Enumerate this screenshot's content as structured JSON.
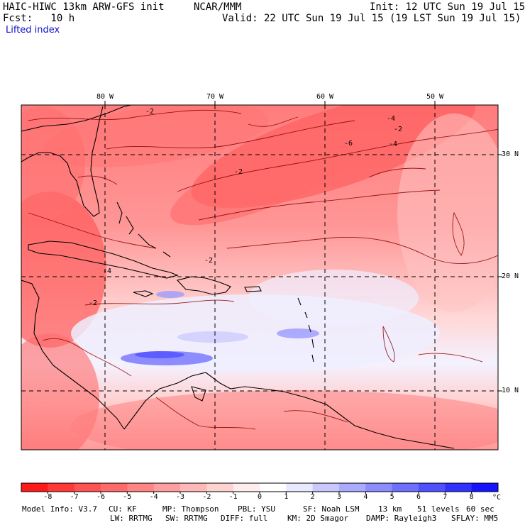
{
  "header": {
    "model": "HAIC-HIWC 13km ARW-GFS init",
    "org": "NCAR/MMM",
    "init": "Init: 12 UTC Sun 19 Jul 15",
    "fcst": "Fcst:   10 h",
    "valid": "Valid: 22 UTC Sun 19 Jul 15 (19 LST Sun 19 Jul 15)",
    "field": "Lifted index"
  },
  "map": {
    "longitude_labels": [
      "80 W",
      "70 W",
      "60 W",
      "50 W"
    ],
    "latitude_labels": [
      "30 N",
      "20 N",
      "10 N"
    ],
    "contour_labels": [
      "-2",
      "-4",
      "-6"
    ]
  },
  "colorbar": {
    "tick_labels": [
      "-8",
      "-7",
      "-6",
      "-5",
      "-4",
      "-3",
      "-2",
      "-1",
      "0",
      "1",
      "2",
      "3",
      "4",
      "5",
      "6",
      "7",
      "8"
    ],
    "unit": "°C",
    "colors": [
      "#ff1a1a",
      "#ff3838",
      "#ff5252",
      "#ff6a6a",
      "#ff8484",
      "#ff9e9e",
      "#ffb8b8",
      "#ffd2d2",
      "#ffecec",
      "#ffffff",
      "#e8e8ff",
      "#c8c8ff",
      "#aaaaff",
      "#8c8cff",
      "#6e6eff",
      "#5050ff",
      "#3232ff",
      "#1414ff"
    ]
  },
  "footer": {
    "line1": [
      "Model Info: V3.7",
      "CU: KF",
      "MP: Thompson",
      "PBL: YSU",
      "SF: Noah LSM",
      "13 km",
      "51 levels",
      "60 sec"
    ],
    "line2": [
      "LW: RRTMG",
      "SW: RRTMG",
      "DIFF: full",
      "KM: 2D Smagor",
      "DAMP: Rayleigh3",
      "SFLAY: MM5"
    ]
  }
}
